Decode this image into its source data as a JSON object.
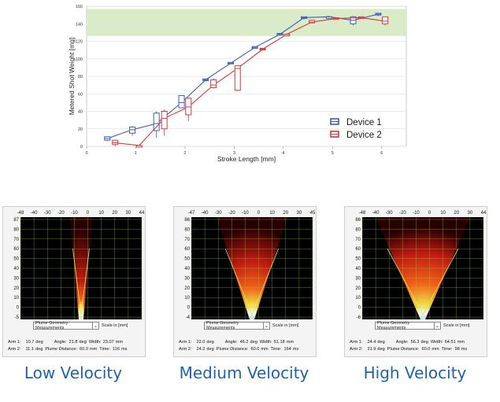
{
  "chart_data": {
    "type": "box",
    "xlabel": "Stroke Length [mm]",
    "ylabel": "Metered Shot Weight [mg]",
    "xlim": [
      0,
      6.5
    ],
    "ylim": [
      0,
      160
    ],
    "xticks": [
      "0",
      "1",
      "2",
      "3",
      "4",
      "5",
      "6"
    ],
    "yticks": [
      "0",
      "20",
      "40",
      "60",
      "80",
      "100",
      "120",
      "140",
      "160"
    ],
    "target_band": [
      126,
      157
    ],
    "band_color": "#d9ecc7",
    "series": [
      {
        "name": "Device 1",
        "color": "#3b5fb5",
        "boxes": [
          {
            "x": 0.42,
            "min": 6,
            "q1": 7,
            "med": 9,
            "q3": 11,
            "max": 11
          },
          {
            "x": 0.93,
            "min": 12,
            "q1": 15,
            "med": 19,
            "q3": 22,
            "max": 23
          },
          {
            "x": 1.42,
            "min": 10,
            "q1": 18,
            "med": 26,
            "q3": 38,
            "max": 40
          },
          {
            "x": 1.93,
            "min": 44,
            "q1": 44,
            "med": 50,
            "q3": 58,
            "max": 58
          },
          {
            "x": 2.42,
            "min": 74,
            "q1": 75,
            "med": 76,
            "q3": 77,
            "max": 77
          },
          {
            "x": 2.93,
            "min": 94,
            "q1": 95,
            "med": 95,
            "q3": 96,
            "max": 96
          },
          {
            "x": 3.42,
            "min": 112,
            "q1": 112,
            "med": 113,
            "q3": 114,
            "max": 114
          },
          {
            "x": 3.93,
            "min": 127,
            "q1": 127,
            "med": 128,
            "q3": 129,
            "max": 129
          },
          {
            "x": 4.42,
            "min": 145,
            "q1": 146,
            "med": 147,
            "q3": 148,
            "max": 148
          },
          {
            "x": 4.93,
            "min": 146,
            "q1": 147,
            "med": 148,
            "q3": 148,
            "max": 149
          },
          {
            "x": 5.42,
            "min": 138,
            "q1": 140,
            "med": 144,
            "q3": 148,
            "max": 149
          },
          {
            "x": 5.93,
            "min": 149,
            "q1": 150,
            "med": 151,
            "q3": 152,
            "max": 152
          }
        ],
        "mean_line": [
          9,
          19,
          26,
          50,
          76,
          95,
          113,
          128,
          147,
          148,
          144,
          151
        ]
      },
      {
        "name": "Device 2",
        "color": "#d9383a",
        "boxes": [
          {
            "x": 0.58,
            "min": 0,
            "q1": 2,
            "med": 4,
            "q3": 7,
            "max": 7
          },
          {
            "x": 1.07,
            "min": 0,
            "q1": 0,
            "med": 1,
            "q3": 1,
            "max": 1
          },
          {
            "x": 1.58,
            "min": 12,
            "q1": 20,
            "med": 32,
            "q3": 40,
            "max": 42
          },
          {
            "x": 2.07,
            "min": 29,
            "q1": 36,
            "med": 45,
            "q3": 55,
            "max": 56
          },
          {
            "x": 2.58,
            "min": 66,
            "q1": 67,
            "med": 70,
            "q3": 76,
            "max": 78
          },
          {
            "x": 3.07,
            "min": 63,
            "q1": 64,
            "med": 89,
            "q3": 92,
            "max": 93
          },
          {
            "x": 3.58,
            "min": 110,
            "q1": 110,
            "med": 111,
            "q3": 112,
            "max": 112
          },
          {
            "x": 4.07,
            "min": 127,
            "q1": 127,
            "med": 128,
            "q3": 128,
            "max": 128
          },
          {
            "x": 4.58,
            "min": 141,
            "q1": 141,
            "med": 142,
            "q3": 144,
            "max": 145
          },
          {
            "x": 5.07,
            "min": 145,
            "q1": 145,
            "med": 146,
            "q3": 147,
            "max": 147
          },
          {
            "x": 5.58,
            "min": 146,
            "q1": 146,
            "med": 147,
            "q3": 148,
            "max": 148
          },
          {
            "x": 6.07,
            "min": 138,
            "q1": 140,
            "med": 143,
            "q3": 148,
            "max": 148
          }
        ],
        "mean_line": [
          4,
          1,
          32,
          45,
          70,
          89,
          111,
          128,
          142,
          146,
          147,
          143
        ]
      }
    ]
  },
  "panels": [
    {
      "caption": "Low Velocity",
      "top_ticks": [
        "-48",
        "-40",
        "-30",
        "-20",
        "-10",
        "0",
        "10",
        "20",
        "30",
        "44"
      ],
      "left_ticks": [
        "87",
        "80",
        "70",
        "60",
        "50",
        "40",
        "30",
        "20",
        "10",
        "0",
        "-5"
      ],
      "dropdown_label": "Plume Geometry Measurements",
      "scale_label": "Scale in [mm]",
      "arm1_label": "Arm 1:",
      "arm1_deg": "10.7",
      "deg_unit": "deg",
      "angle_label": "Angle:",
      "angle_value": "21.8",
      "width_label": "Width:",
      "width_value": "23.07",
      "mm_unit": "mm",
      "arm2_label": "Arm 2:",
      "arm2_deg": "11.1",
      "pd_label": "Plume Distance:",
      "pd_value": "60.0",
      "time_label": "Time:",
      "time_value": "116",
      "ms_unit": "ms"
    },
    {
      "caption": "Medium Velocity",
      "top_ticks": [
        "-47",
        "-40",
        "-30",
        "-20",
        "-10",
        "0",
        "10",
        "20",
        "30",
        "45"
      ],
      "left_ticks": [
        "86",
        "80",
        "70",
        "60",
        "50",
        "40",
        "30",
        "20",
        "10",
        "0",
        "-4"
      ],
      "dropdown_label": "Plume Geometry Measurements",
      "scale_label": "Scale in [mm]",
      "arm1_label": "Arm 1:",
      "arm1_deg": "22.0",
      "deg_unit": "deg",
      "angle_label": "Angle:",
      "angle_value": "46.2",
      "width_label": "Width:",
      "width_value": "51.18",
      "mm_unit": "mm",
      "arm2_label": "Arm 2:",
      "arm2_deg": "24.2",
      "pd_label": "Plume Distance:",
      "pd_value": "60.0",
      "time_label": "Time:",
      "time_value": "164",
      "ms_unit": "ms"
    },
    {
      "caption": "High Velocity",
      "top_ticks": [
        "-48",
        "-40",
        "-30",
        "-20",
        "-10",
        "0",
        "10",
        "20",
        "30",
        "44"
      ],
      "left_ticks": [
        "86",
        "80",
        "70",
        "60",
        "50",
        "40",
        "30",
        "20",
        "10",
        "0",
        "-6"
      ],
      "dropdown_label": "Plume Geometry Measurements",
      "scale_label": "Scale in [mm]",
      "arm1_label": "Arm 1:",
      "arm1_deg": "24.4",
      "deg_unit": "deg",
      "angle_label": "Angle:",
      "angle_value": "56.3",
      "width_label": "Width:",
      "width_value": "64.51",
      "mm_unit": "mm",
      "arm2_label": "Arm 2:",
      "arm2_deg": "31.9",
      "pd_label": "Plume Distance:",
      "pd_value": "60.0",
      "time_label": "Time:",
      "time_value": "98",
      "ms_unit": "ms"
    }
  ],
  "icons": {
    "dropdown_caret": "chevron-down-icon"
  }
}
